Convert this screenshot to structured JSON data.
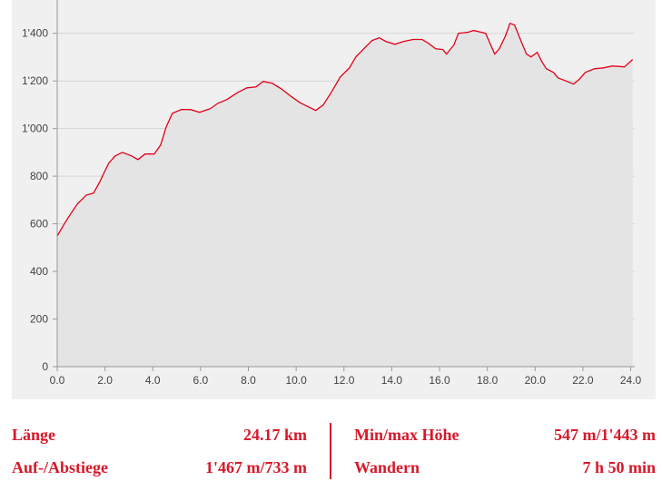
{
  "chart_data": {
    "type": "area",
    "color": "#e2001a",
    "fill": "#e4e4e4",
    "background": "#f0f0f0",
    "grid": true,
    "x": [
      0,
      0.27,
      0.46,
      0.84,
      1.22,
      1.52,
      1.79,
      1.97,
      2.16,
      2.43,
      2.73,
      3.11,
      3.38,
      3.68,
      4.06,
      4.33,
      4.56,
      4.82,
      5.2,
      5.58,
      5.96,
      6.42,
      6.72,
      7.1,
      7.56,
      7.94,
      8.32,
      8.62,
      9.0,
      9.38,
      9.76,
      10.14,
      10.52,
      10.82,
      11.13,
      11.47,
      11.85,
      12.23,
      12.5,
      12.8,
      13.18,
      13.48,
      13.75,
      14.13,
      14.51,
      14.89,
      15.27,
      15.53,
      15.84,
      16.14,
      16.29,
      16.6,
      16.79,
      17.17,
      17.43,
      17.93,
      18.31,
      18.5,
      18.76,
      18.95,
      19.14,
      19.45,
      19.64,
      19.83,
      20.09,
      20.28,
      20.47,
      20.77,
      20.96,
      21.34,
      21.61,
      21.84,
      22.1,
      22.48,
      22.86,
      23.24,
      23.74,
      24.08
    ],
    "values": [
      549,
      595,
      626,
      683,
      721,
      729,
      778,
      816,
      855,
      885,
      900,
      885,
      870,
      893,
      893,
      931,
      1007,
      1064,
      1080,
      1080,
      1068,
      1084,
      1106,
      1122,
      1152,
      1171,
      1175,
      1198,
      1190,
      1167,
      1137,
      1110,
      1091,
      1076,
      1099,
      1152,
      1217,
      1255,
      1301,
      1332,
      1370,
      1381,
      1366,
      1354,
      1366,
      1374,
      1374,
      1358,
      1335,
      1332,
      1313,
      1351,
      1400,
      1404,
      1412,
      1400,
      1313,
      1335,
      1389,
      1442,
      1435,
      1358,
      1313,
      1301,
      1320,
      1282,
      1251,
      1236,
      1213,
      1198,
      1187,
      1206,
      1236,
      1251,
      1255,
      1263,
      1259,
      1290
    ],
    "xlim": [
      0,
      24.17
    ],
    "ylim": [
      0,
      1540
    ],
    "xticks": [
      {
        "value": 0,
        "label": "0.0"
      },
      {
        "value": 2,
        "label": "2.0"
      },
      {
        "value": 4,
        "label": "4.0"
      },
      {
        "value": 6,
        "label": "6.0"
      },
      {
        "value": 8,
        "label": "8.0"
      },
      {
        "value": 10,
        "label": "10.0"
      },
      {
        "value": 12,
        "label": "12.0"
      },
      {
        "value": 14,
        "label": "14.0"
      },
      {
        "value": 16,
        "label": "16.0"
      },
      {
        "value": 18,
        "label": "18.0"
      },
      {
        "value": 20,
        "label": "20.0"
      },
      {
        "value": 22,
        "label": "22.0"
      },
      {
        "value": 24,
        "label": "24.0"
      }
    ],
    "yticks": [
      0,
      200,
      400,
      600,
      800,
      {
        "value": 1000,
        "label": "1'000"
      },
      {
        "value": 1200,
        "label": "1'200"
      },
      {
        "value": 1400,
        "label": "1'400"
      }
    ]
  },
  "stats": [
    {
      "label": "Länge",
      "value": "24.17 km"
    },
    {
      "label": "Min/max Höhe",
      "value": "547 m/1'443 m"
    },
    {
      "label": "Auf-/Abstiege",
      "value": "1'467 m/733 m"
    },
    {
      "label": "Wandern",
      "value": "7 h 50 min"
    }
  ]
}
